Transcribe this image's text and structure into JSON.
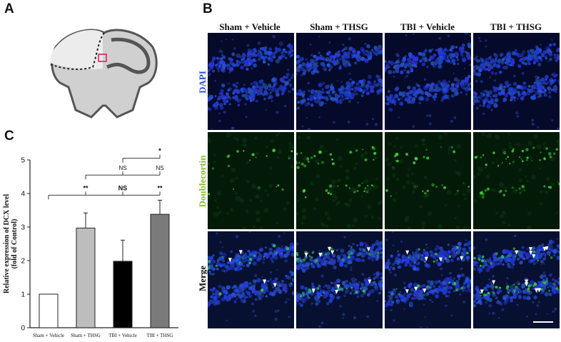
{
  "panels": {
    "a": "A",
    "b": "B",
    "c": "C"
  },
  "microscopy": {
    "columns": [
      "Sham + Vehicle",
      "Sham + THSG",
      "TBI + Vehicle",
      "TBI + THSG"
    ],
    "rows": [
      {
        "label": "DAPI",
        "color": "#2b4fd8"
      },
      {
        "label": "Doublecortin",
        "color": "#7fc227"
      },
      {
        "label": "Merge",
        "color": "#111111"
      }
    ]
  },
  "chart_data": {
    "type": "bar",
    "ylabel": "Relative expression of DCX level\n(fold of Control)",
    "ylabel_lines": [
      "Relative expression of DCX level",
      "(fold of Control)"
    ],
    "categories": [
      "Sham + Vehicle",
      "Sham + THSG",
      "TBI + Vehicle",
      "TBI + THSG"
    ],
    "values": [
      1.0,
      2.97,
      1.98,
      3.38
    ],
    "errors": [
      0,
      0.45,
      0.63,
      0.42
    ],
    "bar_colors": [
      "#ffffff",
      "#bdbdbd",
      "#000000",
      "#7a7a7a"
    ],
    "ylim": [
      0,
      5
    ],
    "yticks": [
      0,
      1,
      2,
      3,
      4,
      5
    ],
    "significance": [
      {
        "from": 0,
        "to": 1,
        "label": "**"
      },
      {
        "from": 0,
        "to": 2,
        "label": "NS"
      },
      {
        "from": 0,
        "to": 3,
        "label": "**"
      },
      {
        "from": 1,
        "to": 2,
        "label": "NS"
      },
      {
        "from": 1,
        "to": 3,
        "label": "NS"
      },
      {
        "from": 2,
        "to": 3,
        "label": "*"
      }
    ]
  }
}
